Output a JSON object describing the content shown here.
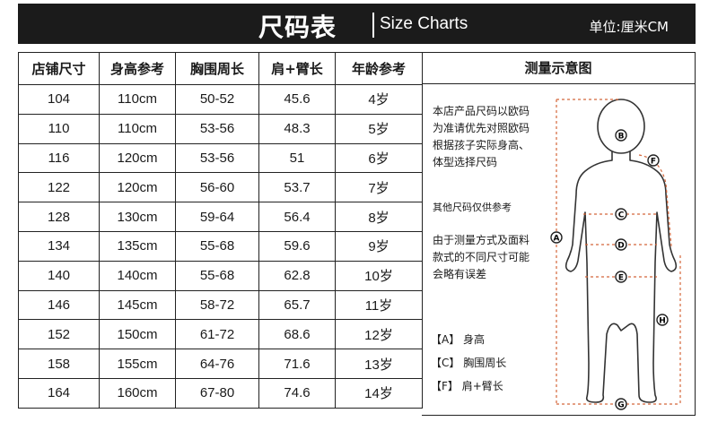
{
  "header": {
    "title": "尺码表",
    "subtitle": "Size Charts",
    "unit": "单位:厘米CM"
  },
  "table": {
    "columns": [
      "店铺尺寸",
      "身高参考",
      "胸围周长",
      "肩+臂长",
      "年龄参考"
    ],
    "rows": [
      [
        "104",
        "110cm",
        "50-52",
        "45.6",
        "4岁"
      ],
      [
        "110",
        "110cm",
        "53-56",
        "48.3",
        "5岁"
      ],
      [
        "116",
        "120cm",
        "53-56",
        "51",
        "6岁"
      ],
      [
        "122",
        "120cm",
        "56-60",
        "53.7",
        "7岁"
      ],
      [
        "128",
        "130cm",
        "59-64",
        "56.4",
        "8岁"
      ],
      [
        "134",
        "135cm",
        "55-68",
        "59.6",
        "9岁"
      ],
      [
        "140",
        "140cm",
        "55-68",
        "62.8",
        "10岁"
      ],
      [
        "146",
        "145cm",
        "58-72",
        "65.7",
        "11岁"
      ],
      [
        "152",
        "150cm",
        "61-72",
        "68.6",
        "12岁"
      ],
      [
        "158",
        "155cm",
        "64-76",
        "71.6",
        "13岁"
      ],
      [
        "164",
        "160cm",
        "67-80",
        "74.6",
        "14岁"
      ]
    ]
  },
  "diagram": {
    "title": "测量示意图",
    "note_lines_1": [
      "本店产品尺码以欧码",
      "为准请优先对照欧码",
      "根据孩子实际身高、",
      "体型选择尺码"
    ],
    "note_2": "其他尺码仅供参考",
    "note_lines_3": [
      "由于测量方式及面料",
      "款式的不同尺寸可能",
      "会略有误差"
    ],
    "legend": [
      "【A】 身高",
      "【C】 胸围周长",
      "【F】 肩+臂长"
    ],
    "markers": [
      "A",
      "B",
      "C",
      "D",
      "E",
      "F",
      "G",
      "H"
    ]
  }
}
